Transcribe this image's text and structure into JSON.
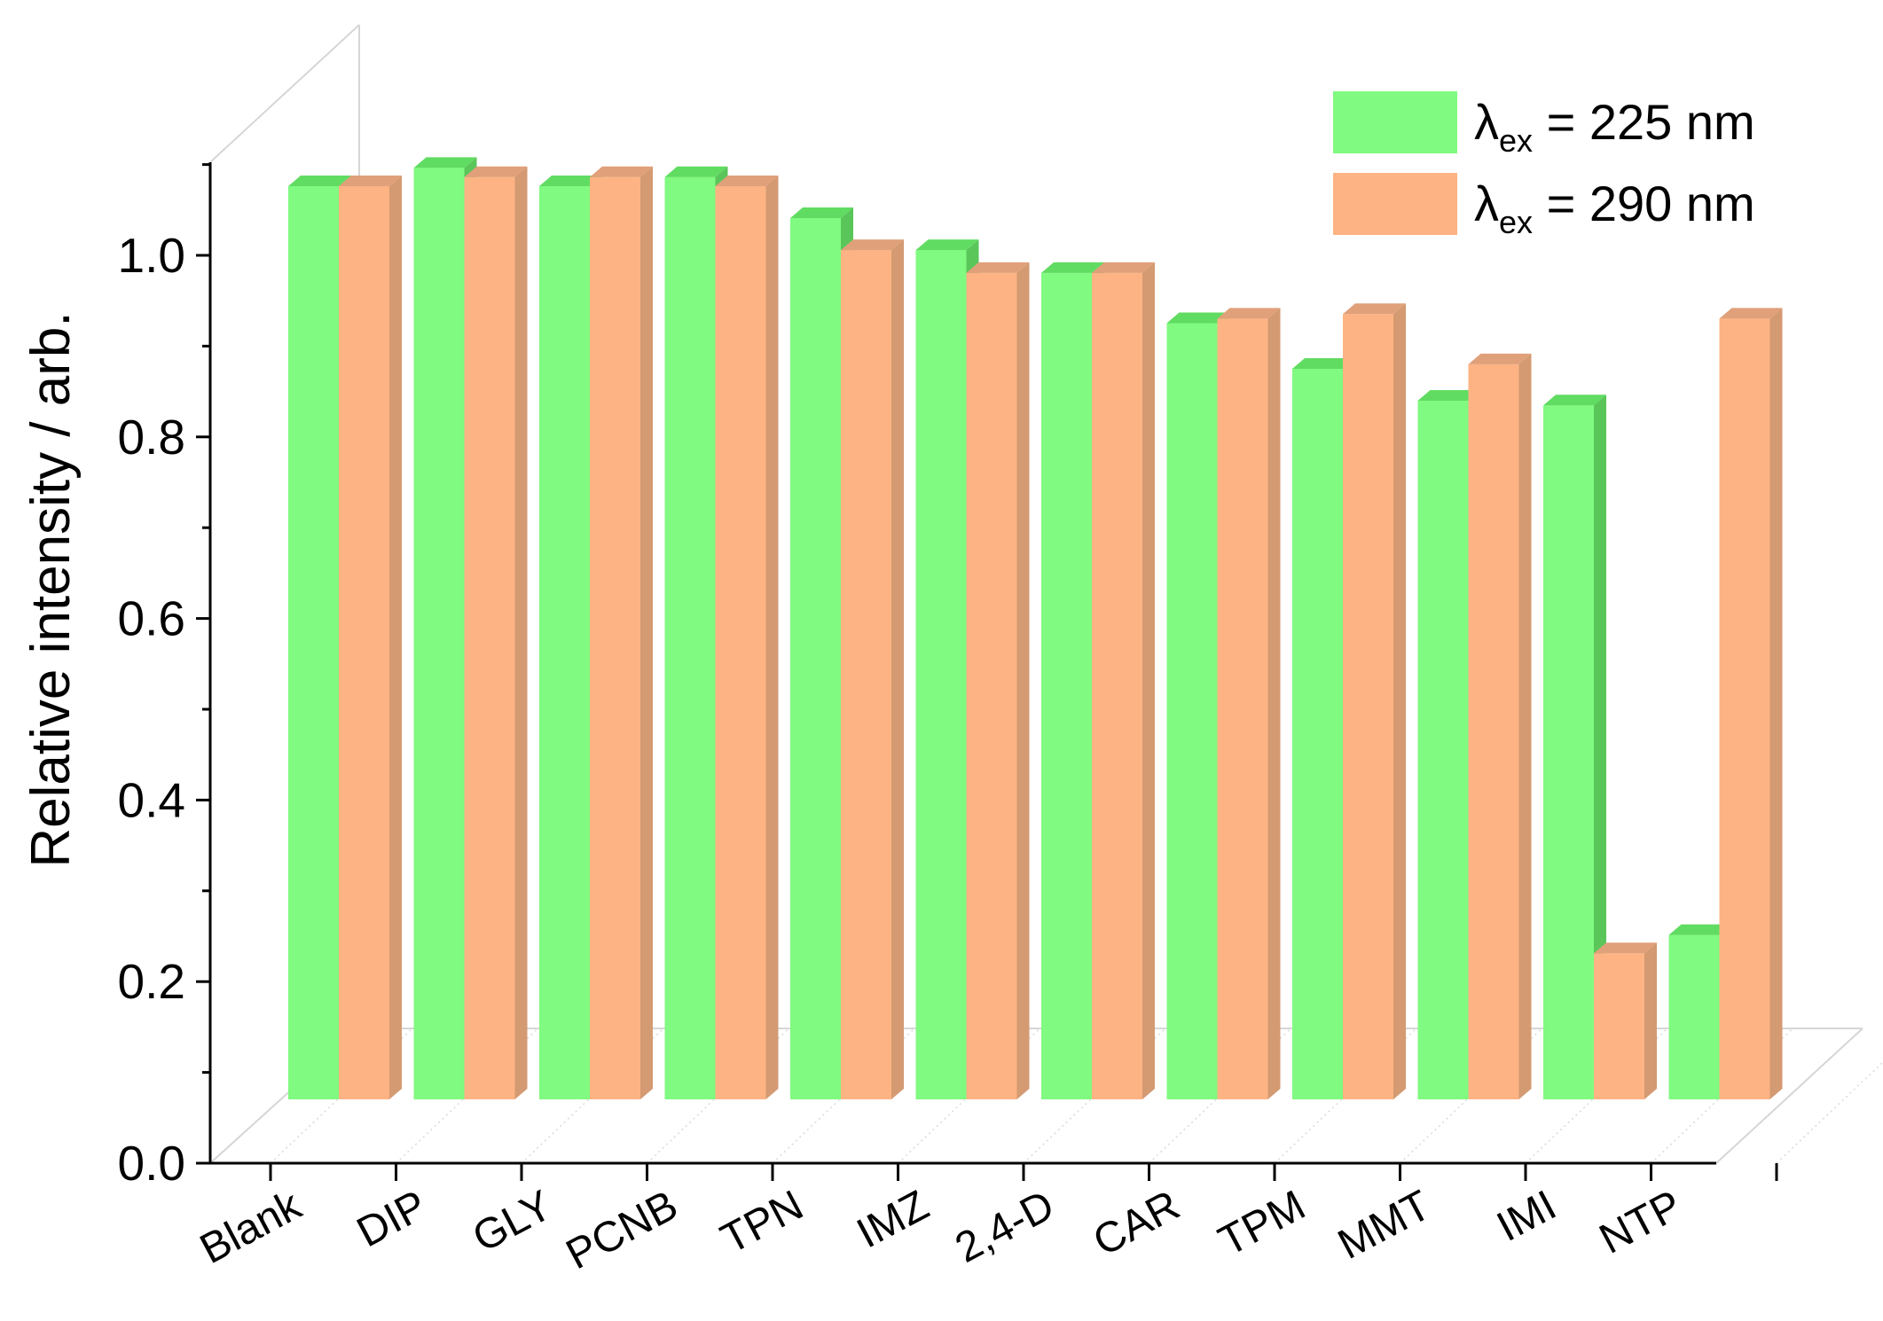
{
  "chart_data": {
    "type": "bar",
    "style": "3d",
    "categories": [
      "Blank",
      "DIP",
      "GLY",
      "PCNB",
      "TPN",
      "IMZ",
      "2,4-D",
      "CAR",
      "TPM",
      "MMT",
      "IMI",
      "NTP"
    ],
    "series": [
      {
        "name_main": "λ",
        "name_sub": "ex",
        "name_rest": " = 225 nm",
        "color": "#80fa80",
        "top_color": "#61dc62",
        "side_color": "#5ac65a",
        "values": [
          1.0,
          1.02,
          1.0,
          1.01,
          0.965,
          0.93,
          0.905,
          0.85,
          0.8,
          0.765,
          0.76,
          0.18
        ]
      },
      {
        "name_main": "λ",
        "name_sub": "ex",
        "name_rest": " = 290 nm",
        "color": "#fdb383",
        "top_color": "#e0a07a",
        "side_color": "#d49a72",
        "values": [
          1.0,
          1.01,
          1.01,
          1.0,
          0.93,
          0.905,
          0.905,
          0.855,
          0.86,
          0.805,
          0.16,
          0.855
        ]
      }
    ],
    "ylabel": "Relative intensity / arb.",
    "yticks": [
      "0.0",
      "0.2",
      "0.4",
      "0.6",
      "0.8",
      "1.0"
    ],
    "ylim": [
      0,
      1.1
    ],
    "legend_position": "top-right",
    "grid": false
  }
}
